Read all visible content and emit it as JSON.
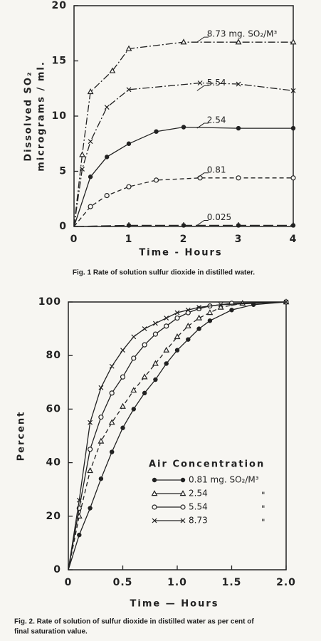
{
  "chart_data": [
    {
      "type": "line",
      "ylabel": [
        "Dissolved SO₂",
        "micrograms / ml."
      ],
      "xlabel": "Time  -  Hours",
      "caption": [
        "Fig. 1    Rate of solution sulfur dioxide in distilled water."
      ],
      "xlim": [
        0,
        4
      ],
      "xticks": [
        0,
        1,
        2,
        3,
        4
      ],
      "ylim": [
        0,
        20
      ],
      "yticks": [
        0,
        5,
        10,
        15,
        20
      ],
      "labels": "inline",
      "series": [
        {
          "name": "8.73 mg. SO₂/M³",
          "color": "#222",
          "marker": "triangle",
          "line_style": "dashdot",
          "x": [
            0,
            0.15,
            0.3,
            0.7,
            1,
            2,
            3,
            4
          ],
          "values": [
            0,
            6.5,
            12.2,
            14.1,
            16.1,
            16.7,
            16.7,
            16.7
          ]
        },
        {
          "name": "5.54",
          "color": "#222",
          "marker": "x",
          "line_style": "dashdot",
          "x": [
            0,
            0.15,
            0.3,
            0.6,
            1,
            2.3,
            3,
            4
          ],
          "values": [
            0,
            5.2,
            7.7,
            10.8,
            12.4,
            13.0,
            12.9,
            12.3
          ]
        },
        {
          "name": "2.54",
          "color": "#222",
          "marker": "dot",
          "line_style": "solid",
          "x": [
            0,
            0.3,
            0.6,
            1,
            1.5,
            2,
            3,
            4
          ],
          "values": [
            0,
            4.5,
            6.3,
            7.5,
            8.6,
            9.0,
            8.9,
            8.9
          ]
        },
        {
          "name": "0.81",
          "color": "#222",
          "marker": "circle",
          "line_style": "dashed",
          "x": [
            0,
            0.3,
            0.6,
            1,
            1.5,
            2.3,
            3,
            4
          ],
          "values": [
            0,
            1.8,
            2.8,
            3.6,
            4.2,
            4.4,
            4.4,
            4.4
          ]
        },
        {
          "name": "0.025",
          "color": "#222",
          "marker": "dot",
          "line_style": "longdash",
          "x": [
            0,
            1,
            2,
            3,
            4
          ],
          "values": [
            0,
            0.1,
            0.1,
            0.1,
            0.1
          ]
        }
      ]
    },
    {
      "type": "line",
      "ylabel": [
        "Percent"
      ],
      "xlabel": "Time — Hours",
      "caption": [
        "Fig. 2.   Rate of solution of sulfur dioxide in distilled water as per cent of",
        "final saturation value."
      ],
      "xlim": [
        0,
        2
      ],
      "xticks": [
        0,
        0.5,
        {
          "value": 1,
          "label": "1.0"
        },
        1.5,
        {
          "value": 2,
          "label": "2.0"
        }
      ],
      "ylim": [
        0,
        100
      ],
      "yticks": [
        0,
        20,
        40,
        60,
        80,
        100
      ],
      "legend": "center right",
      "legend_title": "Air Concentration",
      "series": [
        {
          "name": "0.81 mg. SO₂/M³",
          "color": "#222",
          "marker": "dot",
          "line_style": "solid",
          "x": [
            0,
            0.1,
            0.2,
            0.3,
            0.4,
            0.5,
            0.6,
            0.7,
            0.8,
            0.9,
            1.0,
            1.1,
            1.2,
            1.3,
            1.5,
            1.7,
            2.0
          ],
          "values": [
            0,
            13,
            23,
            34,
            44,
            53,
            60,
            66,
            71,
            77,
            82,
            86,
            90,
            93,
            97,
            99,
            100
          ]
        },
        {
          "name": "2.54",
          "note": "\"",
          "color": "#222",
          "marker": "triangle",
          "line_style": "dashed",
          "x": [
            0,
            0.1,
            0.2,
            0.3,
            0.4,
            0.5,
            0.6,
            0.7,
            0.8,
            0.9,
            1.0,
            1.1,
            1.2,
            1.3,
            1.4,
            1.6,
            2.0
          ],
          "values": [
            0,
            20,
            37,
            48,
            55,
            61,
            67,
            72,
            77,
            82,
            87,
            91,
            94,
            96,
            98,
            99.5,
            100
          ]
        },
        {
          "name": "5.54",
          "note": "\"",
          "color": "#222",
          "marker": "circle",
          "line_style": "solid",
          "x": [
            0,
            0.1,
            0.2,
            0.3,
            0.4,
            0.5,
            0.6,
            0.7,
            0.8,
            0.9,
            1.0,
            1.1,
            1.2,
            1.3,
            1.5,
            2.0
          ],
          "values": [
            0,
            23,
            45,
            57,
            66,
            72,
            79,
            84,
            88,
            91,
            94,
            96,
            97.5,
            98.5,
            99.5,
            100
          ]
        },
        {
          "name": "8.73",
          "note": "\"",
          "color": "#222",
          "marker": "x",
          "line_style": "solid",
          "x": [
            0,
            0.1,
            0.2,
            0.3,
            0.4,
            0.5,
            0.6,
            0.7,
            0.8,
            0.9,
            1.0,
            1.1,
            1.2,
            1.4,
            2.0
          ],
          "values": [
            0,
            26,
            55,
            68,
            76,
            82,
            87,
            90,
            92,
            94,
            96,
            97,
            98,
            99,
            100
          ]
        }
      ]
    }
  ]
}
